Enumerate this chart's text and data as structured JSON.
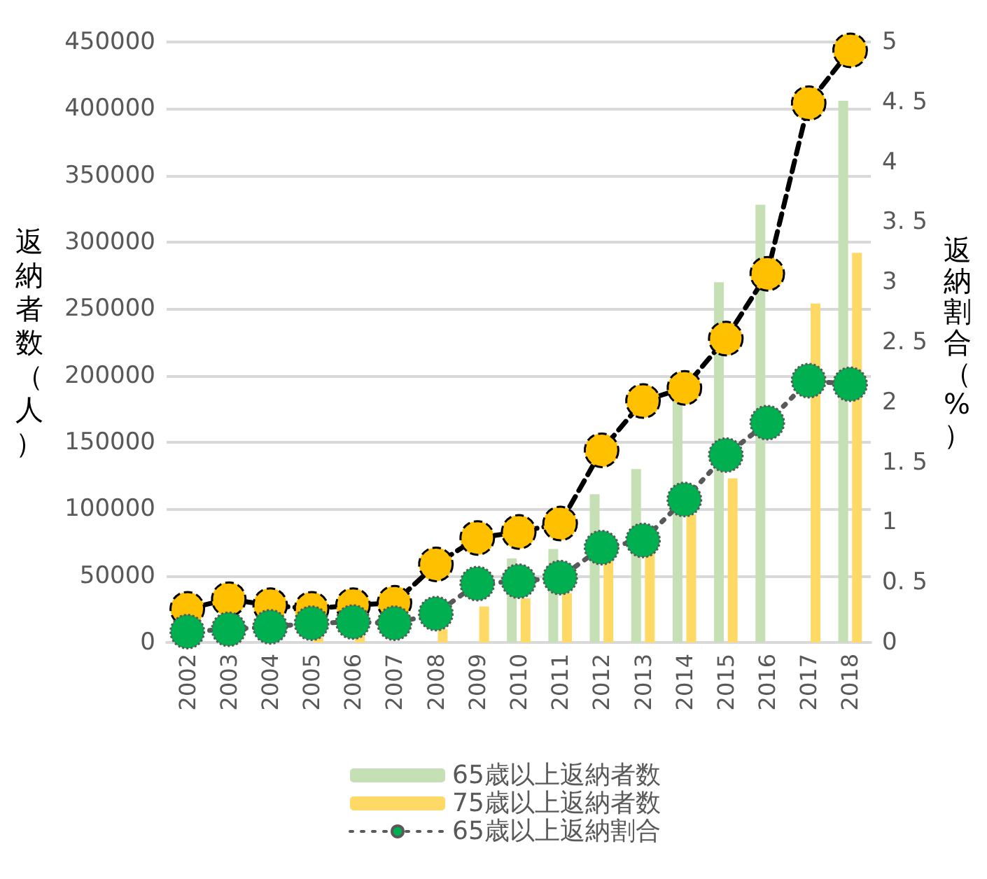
{
  "chart_data": {
    "type": "bar",
    "ylabel": "返納者数（人）",
    "y2label": "返納割合（%）",
    "categories": [
      "2002",
      "2003",
      "2004",
      "2005",
      "2006",
      "2007",
      "2008",
      "2009",
      "2010",
      "2011",
      "2012",
      "2013",
      "2014",
      "2015",
      "2016",
      "2017",
      "2018"
    ],
    "series": [
      {
        "name": "65歳以上返納者数",
        "color": "#c5e0b4",
        "values": [
          null,
          null,
          null,
          null,
          null,
          null,
          null,
          null,
          63000,
          70000,
          111000,
          130000,
          182000,
          270000,
          328000,
          null,
          406000
        ]
      },
      {
        "name": "75歳以上返納者数",
        "color": "#ffd966",
        "values": [
          1000,
          null,
          null,
          4000,
          5000,
          null,
          10000,
          27000,
          33000,
          37000,
          62000,
          68000,
          96000,
          123000,
          null,
          254000,
          292000
        ]
      },
      {
        "type": "line",
        "axis": "y2",
        "color": "#ffc000",
        "line_style": "dashed",
        "marker": "circle",
        "values": [
          0.28,
          0.36,
          0.31,
          0.28,
          0.31,
          0.33,
          0.65,
          0.87,
          0.92,
          0.99,
          1.6,
          2.01,
          2.12,
          2.53,
          3.07,
          4.49,
          4.93
        ]
      },
      {
        "type": "line",
        "axis": "y2",
        "name": "65歳以上返納割合",
        "color": "#00b050",
        "line_style": "dotted",
        "marker": "circle",
        "values": [
          0.09,
          0.11,
          0.13,
          0.16,
          0.17,
          0.16,
          0.24,
          0.49,
          0.51,
          0.54,
          0.79,
          0.85,
          1.19,
          1.56,
          1.83,
          2.18,
          2.15
        ]
      }
    ],
    "ylim": [
      0,
      450000
    ],
    "yticks": [
      0,
      50000,
      100000,
      150000,
      200000,
      250000,
      300000,
      350000,
      400000,
      450000
    ],
    "y2lim": [
      0,
      5
    ],
    "y2ticks": [
      0,
      0.5,
      1,
      1.5,
      2,
      2.5,
      3,
      3.5,
      4,
      4.5,
      5
    ],
    "grid": "y",
    "legend": "bottom"
  }
}
